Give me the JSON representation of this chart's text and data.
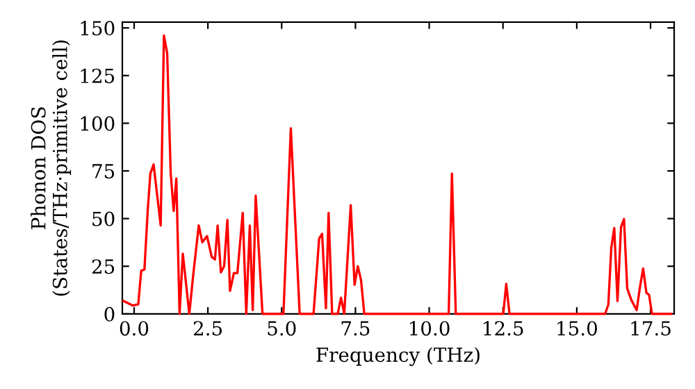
{
  "chart_data": {
    "type": "line",
    "xlabel": "Frequency (THz)",
    "ylabel": "Phonon DOS\n(States/THz·primitive cell)",
    "xlim": [
      -0.4,
      18.3
    ],
    "ylim": [
      0,
      153
    ],
    "xticks": [
      {
        "value": 0,
        "label": "0.0"
      },
      {
        "value": 2.5,
        "label": "2.5"
      },
      {
        "value": 5,
        "label": "5.0"
      },
      {
        "value": 7.5,
        "label": "7.5"
      },
      {
        "value": 10,
        "label": "10.0"
      },
      {
        "value": 12.5,
        "label": "12.5"
      },
      {
        "value": 15,
        "label": "15.0"
      },
      {
        "value": 17.5,
        "label": "17.5"
      }
    ],
    "yticks": [
      0,
      25,
      50,
      75,
      100,
      125,
      150
    ],
    "grid": false,
    "marker": "none",
    "line_style": "solid",
    "series": [
      {
        "color": "#ff0000",
        "x": [
          -0.36,
          -0.05,
          0.14,
          0.24,
          0.35,
          0.46,
          0.55,
          0.66,
          0.9,
          1.01,
          1.12,
          1.24,
          1.34,
          1.43,
          1.54,
          1.65,
          1.87,
          2.0,
          2.19,
          2.31,
          2.47,
          2.63,
          2.74,
          2.83,
          2.94,
          3.05,
          3.16,
          3.25,
          3.38,
          3.5,
          3.68,
          3.8,
          3.92,
          4.02,
          4.12,
          4.35,
          5.06,
          5.31,
          5.61,
          6.08,
          6.27,
          6.37,
          6.5,
          6.59,
          6.71,
          6.9,
          7.01,
          7.12,
          7.34,
          7.47,
          7.58,
          7.69,
          7.8,
          10.66,
          10.77,
          10.9,
          12.51,
          12.61,
          12.72,
          15.96,
          16.07,
          16.17,
          16.27,
          16.38,
          16.5,
          16.6,
          16.71,
          16.85,
          17.03,
          17.14,
          17.25,
          17.36,
          17.45,
          17.55,
          18.2
        ],
        "values": [
          6.8,
          4.4,
          5,
          22.6,
          23.3,
          54,
          73.6,
          78.4,
          46.4,
          146,
          136.7,
          73.6,
          54,
          71,
          0,
          31.6,
          0,
          20,
          46.4,
          37.6,
          40.8,
          29.9,
          28.6,
          46.4,
          21.8,
          25,
          49.3,
          12.1,
          21.4,
          21.4,
          53,
          0,
          46.4,
          2,
          62,
          0,
          0,
          97.4,
          0,
          0,
          39.5,
          42,
          3,
          53,
          0,
          0,
          8.5,
          0,
          57,
          15.3,
          25,
          17.7,
          0,
          0,
          73.6,
          0,
          0,
          15.8,
          0,
          0,
          5,
          34.7,
          45,
          6.8,
          45.6,
          49.8,
          13.3,
          7.3,
          2,
          14,
          23.8,
          11,
          10,
          0,
          0
        ]
      }
    ]
  }
}
